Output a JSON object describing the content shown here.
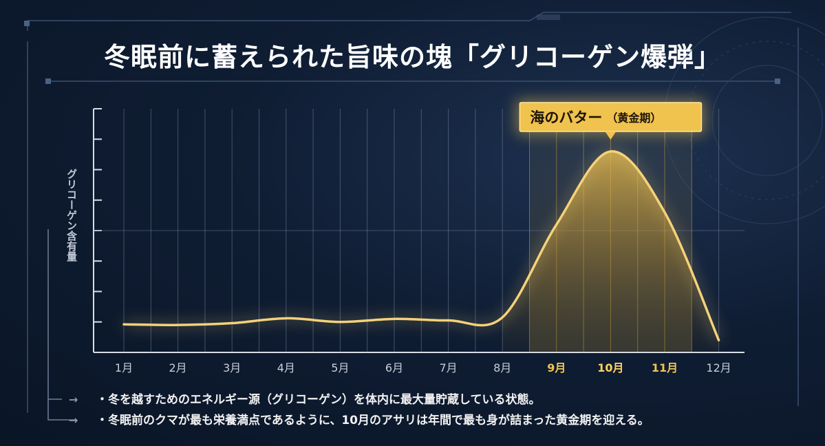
{
  "title": "冬眠前に蓄えられた旨味の塊「グリコーゲン爆弾」",
  "chart_data": {
    "type": "line",
    "ylabel": "グリコーゲン含有量",
    "categories": [
      "1月",
      "2月",
      "3月",
      "4月",
      "5月",
      "6月",
      "7月",
      "8月",
      "9月",
      "10月",
      "11月",
      "12月"
    ],
    "highlight_categories": [
      "9月",
      "10月",
      "11月"
    ],
    "peak_category": "10月",
    "series": [
      {
        "values": [
          0.92,
          0.9,
          0.96,
          1.12,
          1.0,
          1.1,
          1.05,
          1.15,
          4.2,
          6.6,
          4.6,
          0.4
        ]
      }
    ],
    "ylim": [
      0,
      8
    ],
    "y_ticks": 8,
    "annotation": {
      "label": "海のバター",
      "suffix": "（黄金期）"
    },
    "line_color": "#f5d27a",
    "highlight_color": "#d8a93a"
  },
  "notes": [
    "・冬を越すためのエネルギー源（グリコーゲン）を体内に最大量貯蔵している状態。",
    "・冬眠前のクマが最も栄養満点であるように、10月のアサリは年間で最も身が詰まった黄金期を迎える。"
  ]
}
